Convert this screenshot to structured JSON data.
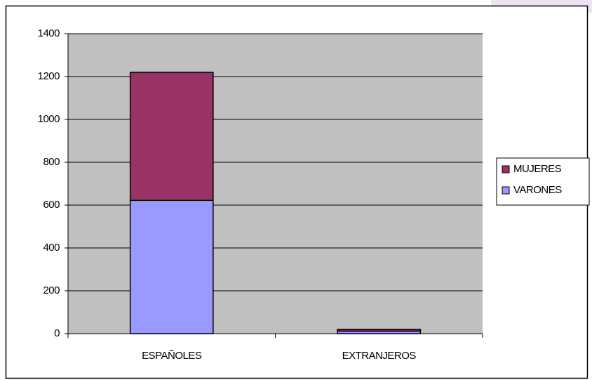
{
  "chart_data": {
    "type": "stacked_bar",
    "categories": [
      "ESPAÑOLES",
      "EXTRANJEROS"
    ],
    "series": [
      {
        "name": "VARONES",
        "color": "#9999ff",
        "values": [
          622,
          12
        ]
      },
      {
        "name": "MUJERES",
        "color": "#993366",
        "values": [
          598,
          8
        ]
      }
    ],
    "ylim": [
      0,
      1400
    ],
    "yticks": [
      0,
      200,
      400,
      600,
      800,
      1000,
      1200,
      1400
    ],
    "grid": true,
    "legend": "right",
    "plot_background": "#c0c0c0"
  }
}
